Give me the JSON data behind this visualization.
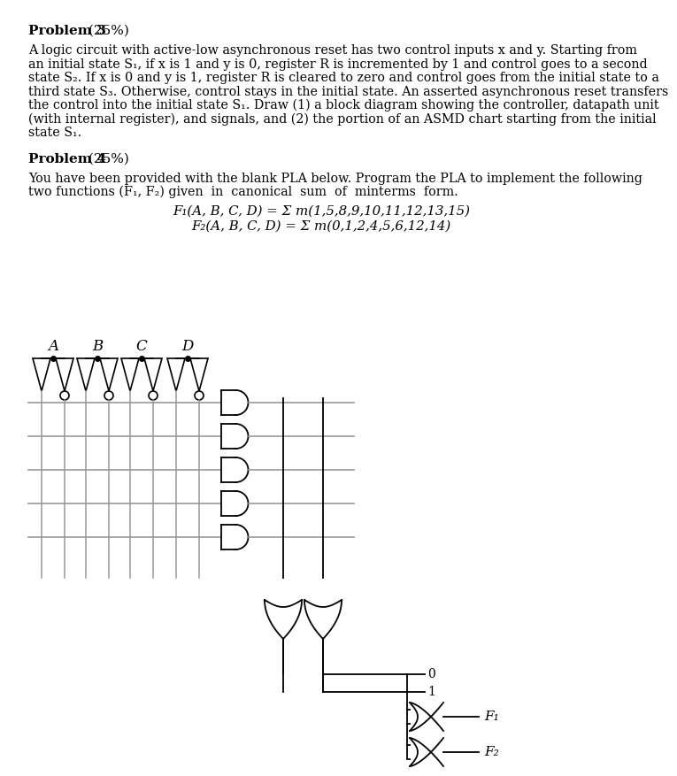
{
  "bg_color": "#ffffff",
  "line_color": "#000000",
  "gray_color": "#999999",
  "problem3_bold": "Problem 3",
  "problem3_pct": "(25%)",
  "problem3_lines": [
    "A logic circuit with active-low asynchronous reset has two control inputs x and y. Starting from",
    "an initial state S₁, if x is 1 and y is 0, register R is incremented by 1 and control goes to a second",
    "state S₂. If x is 0 and y is 1, register R is cleared to zero and control goes from the initial state to a",
    "third state S₃. Otherwise, control stays in the initial state. An asserted asynchronous reset transfers",
    "the control into the initial state S₁. Draw (1) a block diagram showing the controller, datapath unit",
    "(with internal register), and signals, and (2) the portion of an ASMD chart starting from the initial",
    "state S₁."
  ],
  "problem4_bold": "Problem 4",
  "problem4_pct": "(25%)",
  "problem4_lines": [
    "You have been provided with the blank PLA below. Program the PLA to implement the following",
    "two functions (F₁, F₂) given  in  canonical  sum  of  minterms  form."
  ],
  "f1_eq": "F₁(A, B, C, D) = Σ m(1,5,8,9,10,11,12,13,15)",
  "f2_eq": "F₂(A, B, C, D) = Σ m(0,1,2,4,5,6,12,14)",
  "input_labels": [
    "A",
    "B",
    "C",
    "D"
  ],
  "output_labels": [
    "F₁",
    "F₂"
  ]
}
